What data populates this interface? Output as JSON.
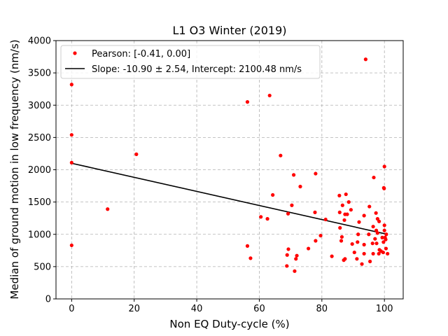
{
  "chart_data": {
    "type": "scatter",
    "title": "L1 O3 Winter (2019)",
    "xlabel": "Non EQ Duty-cycle (%)",
    "ylabel": "Median of ground motion in low frequency (nm/s)",
    "xlim": [
      -5,
      106
    ],
    "ylim": [
      0,
      4000
    ],
    "xticks": [
      0,
      20,
      40,
      60,
      80,
      100
    ],
    "yticks": [
      0,
      500,
      1000,
      1500,
      2000,
      2500,
      3000,
      3500,
      4000
    ],
    "grid": true,
    "legend_position": "upper-left",
    "colors": {
      "points": "#ff0000",
      "fit": "#000000"
    },
    "series": [
      {
        "name": "Pearson: [-0.41, 0.00]",
        "kind": "points",
        "points": [
          [
            0,
            3320
          ],
          [
            0,
            2540
          ],
          [
            0,
            2110
          ],
          [
            0,
            830
          ],
          [
            11.5,
            1390
          ],
          [
            20.7,
            2240
          ],
          [
            56.2,
            3050
          ],
          [
            56.2,
            820
          ],
          [
            57.2,
            630
          ],
          [
            60.5,
            1270
          ],
          [
            62.6,
            1240
          ],
          [
            63.3,
            3150
          ],
          [
            64.3,
            1610
          ],
          [
            66.8,
            2220
          ],
          [
            68.8,
            510
          ],
          [
            68.9,
            680
          ],
          [
            69.2,
            1320
          ],
          [
            69.3,
            770
          ],
          [
            70.4,
            1450
          ],
          [
            71.0,
            1920
          ],
          [
            71.3,
            430
          ],
          [
            71.7,
            620
          ],
          [
            72.0,
            670
          ],
          [
            73.1,
            1740
          ],
          [
            75.7,
            780
          ],
          [
            77.8,
            1340
          ],
          [
            78.0,
            1940
          ],
          [
            78.0,
            900
          ],
          [
            79.6,
            980
          ],
          [
            81.2,
            1230
          ],
          [
            83.2,
            660
          ],
          [
            85.6,
            1600
          ],
          [
            85.7,
            1340
          ],
          [
            85.8,
            1100
          ],
          [
            86.2,
            900
          ],
          [
            86.4,
            960
          ],
          [
            86.6,
            1450
          ],
          [
            87.0,
            600
          ],
          [
            87.2,
            1220
          ],
          [
            87.4,
            1310
          ],
          [
            87.4,
            620
          ],
          [
            87.7,
            1620
          ],
          [
            88.1,
            1310
          ],
          [
            88.6,
            1500
          ],
          [
            89.3,
            1380
          ],
          [
            89.7,
            850
          ],
          [
            90.4,
            720
          ],
          [
            91.2,
            620
          ],
          [
            91.4,
            880
          ],
          [
            91.6,
            1000
          ],
          [
            91.9,
            1190
          ],
          [
            92.8,
            540
          ],
          [
            93.5,
            1290
          ],
          [
            93.5,
            840
          ],
          [
            93.5,
            700
          ],
          [
            94.0,
            3710
          ],
          [
            95.0,
            1000
          ],
          [
            95.2,
            1430
          ],
          [
            95.4,
            580
          ],
          [
            96.2,
            860
          ],
          [
            96.4,
            700
          ],
          [
            96.4,
            1120
          ],
          [
            96.6,
            1880
          ],
          [
            97.0,
            930
          ],
          [
            97.3,
            1330
          ],
          [
            97.4,
            1060
          ],
          [
            97.5,
            860
          ],
          [
            97.8,
            1020
          ],
          [
            97.8,
            1240
          ],
          [
            98.2,
            700
          ],
          [
            98.3,
            1200
          ],
          [
            98.4,
            760
          ],
          [
            98.9,
            740
          ],
          [
            99.3,
            950
          ],
          [
            99.6,
            720
          ],
          [
            99.7,
            880
          ],
          [
            99.8,
            1720
          ],
          [
            99.9,
            1710
          ],
          [
            100.0,
            2050
          ],
          [
            100.0,
            1140
          ],
          [
            100.0,
            1060
          ],
          [
            100.2,
            950
          ],
          [
            100.4,
            920
          ],
          [
            100.5,
            780
          ],
          [
            100.6,
            1000
          ],
          [
            101.0,
            700
          ]
        ]
      },
      {
        "name": "Slope: -10.90 ± 2.54, Intercept: 2100.48 nm/s",
        "kind": "line",
        "slope": -10.9,
        "intercept": 2100.48,
        "x_range": [
          0,
          101
        ]
      }
    ]
  }
}
